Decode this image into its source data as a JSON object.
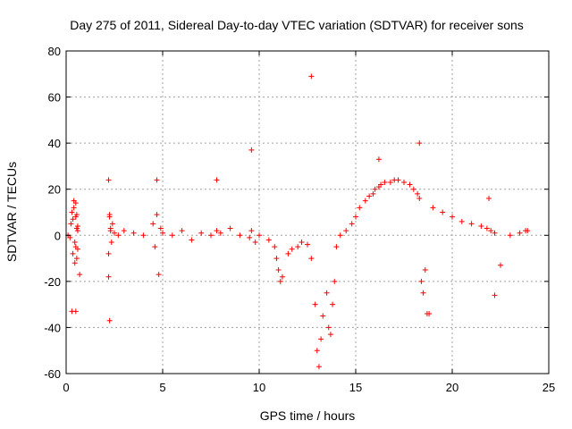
{
  "chart_data": {
    "type": "scatter",
    "title": "Day 275 of 2011, Sidereal Day-to-day VTEC variation (SDTVAR) for receiver sons",
    "xlabel": "GPS time / hours",
    "ylabel": "SDTVAR / TECUs",
    "xlim": [
      0,
      25
    ],
    "ylim": [
      -60,
      80
    ],
    "x_ticks": [
      0,
      5,
      10,
      15,
      20,
      25
    ],
    "y_ticks": [
      -60,
      -40,
      -20,
      0,
      20,
      40,
      60,
      80
    ],
    "grid": true,
    "marker": "+",
    "series_color": "#ff0000",
    "series": [
      {
        "name": "SDTVAR",
        "x": [
          0.1,
          0.2,
          0.25,
          0.3,
          0.35,
          0.4,
          0.45,
          0.5,
          0.55,
          0.6,
          0.4,
          0.45,
          0.5,
          0.55,
          0.6,
          0.7,
          0.3,
          0.35,
          0.5,
          0.55,
          0.6,
          2.2,
          2.25,
          2.3,
          2.35,
          2.4,
          2.2,
          2.25,
          2.3,
          2.5,
          2.7,
          3.0,
          3.5,
          4.0,
          4.5,
          4.6,
          4.7,
          4.8,
          4.9,
          5.0,
          5.5,
          6.0,
          6.5,
          7.0,
          7.5,
          7.8,
          8.0,
          8.5,
          9.0,
          9.5,
          9.6,
          9.8,
          10.0,
          10.5,
          10.8,
          10.9,
          11.0,
          11.1,
          11.2,
          11.5,
          11.7,
          12.0,
          12.2,
          12.5,
          12.7,
          12.9,
          13.0,
          13.1,
          13.2,
          13.3,
          13.5,
          13.6,
          13.7,
          13.8,
          13.9,
          14.0,
          14.2,
          14.5,
          14.8,
          15.0,
          15.2,
          15.5,
          15.7,
          15.9,
          16.0,
          16.2,
          16.3,
          16.5,
          16.8,
          17.0,
          17.2,
          17.5,
          17.8,
          18.0,
          18.2,
          18.3,
          18.4,
          18.5,
          18.6,
          18.8,
          19.0,
          19.5,
          20.0,
          20.5,
          21.0,
          21.5,
          21.8,
          22.0,
          22.2,
          22.5,
          23.0,
          23.5,
          23.8,
          23.9,
          12.7,
          18.3,
          9.6,
          4.7,
          7.8,
          2.2,
          2.25,
          0.5,
          22.2,
          18.7,
          16.2,
          21.9
        ],
        "y": [
          0,
          -1,
          5,
          10,
          -8,
          12,
          -3,
          8,
          -10,
          4,
          15,
          -12,
          14,
          3,
          -6,
          -17,
          -33,
          7,
          -5,
          9,
          2,
          -8,
          8,
          2,
          -3,
          5,
          -18,
          -37,
          3,
          1,
          0,
          2,
          1,
          0,
          5,
          -5,
          9,
          -17,
          3,
          1,
          0,
          2,
          -2,
          1,
          0,
          2,
          1,
          3,
          0,
          -1,
          2,
          -3,
          0,
          -2,
          -5,
          -10,
          -15,
          -20,
          -18,
          -8,
          -6,
          -5,
          -3,
          -4,
          -10,
          -30,
          -50,
          -57,
          -45,
          -35,
          -25,
          -40,
          -43,
          -30,
          -20,
          -5,
          0,
          2,
          5,
          8,
          12,
          15,
          17,
          18,
          20,
          21,
          22,
          23,
          23,
          24,
          24,
          23,
          22,
          20,
          18,
          16,
          -20,
          -25,
          -15,
          -34,
          12,
          10,
          8,
          6,
          5,
          4,
          3,
          2,
          1,
          -13,
          0,
          1,
          2,
          2,
          69,
          40,
          37,
          24,
          24,
          24,
          9,
          -33,
          -26,
          -34,
          33,
          16
        ]
      }
    ]
  }
}
